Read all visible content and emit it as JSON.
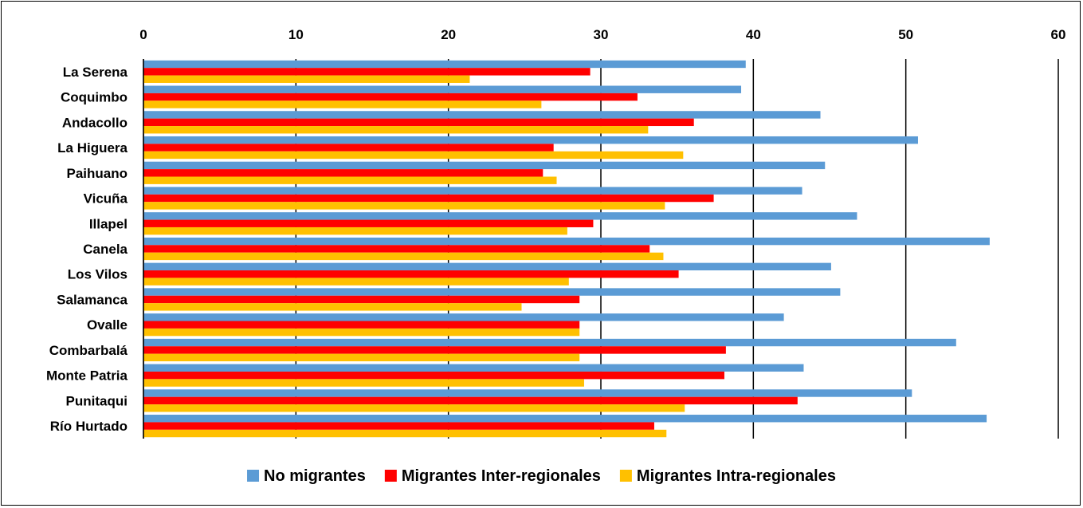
{
  "chart_data": {
    "type": "bar",
    "orientation": "horizontal",
    "categories": [
      "La Serena",
      "Coquimbo",
      "Andacollo",
      "La Higuera",
      "Paihuano",
      "Vicuña",
      "Illapel",
      "Canela",
      "Los Vilos",
      "Salamanca",
      "Ovalle",
      "Combarbalá",
      "Monte Patria",
      "Punitaqui",
      "Río Hurtado"
    ],
    "series": [
      {
        "name": "No migrantes",
        "color": "#5b9bd5",
        "values": [
          39.5,
          39.2,
          44.4,
          50.8,
          44.7,
          43.2,
          46.8,
          55.5,
          45.1,
          45.7,
          42.0,
          53.3,
          43.3,
          50.4,
          55.3
        ]
      },
      {
        "name": "Migrantes Inter-regionales",
        "color": "#ff0000",
        "values": [
          29.3,
          32.4,
          36.1,
          26.9,
          26.2,
          37.4,
          29.5,
          33.2,
          35.1,
          28.6,
          28.6,
          38.2,
          38.1,
          42.9,
          33.5
        ]
      },
      {
        "name": "Migrantes Intra-regionales",
        "color": "#ffc000",
        "values": [
          21.4,
          26.1,
          33.1,
          35.4,
          27.1,
          34.2,
          27.8,
          34.1,
          27.9,
          24.8,
          28.6,
          28.6,
          28.9,
          35.5,
          34.3
        ]
      }
    ],
    "xlim": [
      0,
      60
    ],
    "x_ticks": [
      "0",
      "10",
      "20",
      "30",
      "40",
      "50",
      "60"
    ],
    "x_axis_position": "top",
    "grid": true,
    "legend_position": "bottom"
  }
}
